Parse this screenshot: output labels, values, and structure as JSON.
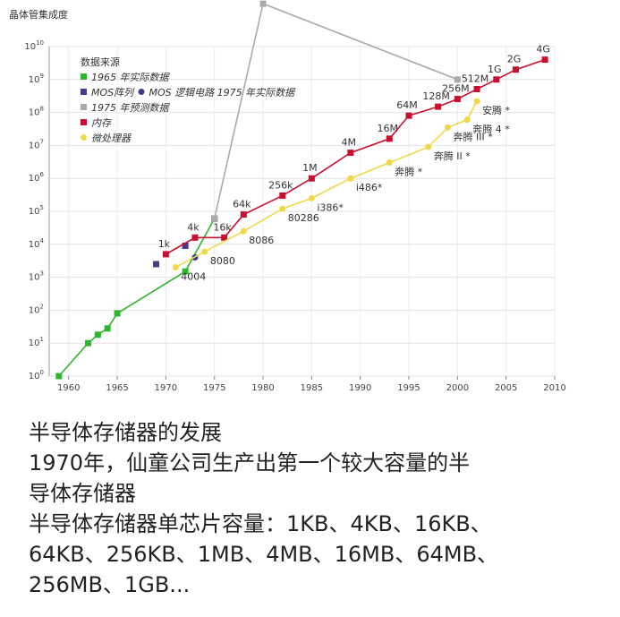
{
  "chart_data": {
    "type": "line",
    "ylabel": "晶体管集成度",
    "y_scale": "log",
    "xlim": [
      1958,
      2010
    ],
    "ylim_exponent": [
      0,
      10
    ],
    "x_ticks": [
      "1960",
      "1965",
      "1970",
      "1975",
      "1980",
      "1985",
      "1990",
      "1995",
      "2000",
      "2005",
      "2010"
    ],
    "y_tick_base": "10",
    "y_tick_exponents": [
      "0",
      "1",
      "2",
      "3",
      "4",
      "5",
      "6",
      "7",
      "8",
      "9",
      "10"
    ],
    "legend_title": "数据来源",
    "legend_position": "top-left",
    "grid": true,
    "series": [
      {
        "name": "1965 年实际数据",
        "color": "#2db52d",
        "marker": "square",
        "line": true,
        "points": [
          [
            1959,
            1
          ],
          [
            1962,
            10
          ],
          [
            1963,
            18
          ],
          [
            1964,
            28
          ],
          [
            1965,
            80
          ],
          [
            1972,
            1500
          ],
          [
            1975,
            60000
          ]
        ]
      },
      {
        "name": "MOS阵列",
        "color": "#4a3a8c",
        "marker": "square",
        "line": false,
        "points": [
          [
            1969,
            2500
          ],
          [
            1972,
            9000
          ],
          [
            1975,
            60000
          ]
        ]
      },
      {
        "name": "MOS 逻辑电路 1975 年实际数据",
        "color": "#3b3b8f",
        "marker": "circle",
        "line": false,
        "points": [
          [
            1973,
            4000
          ]
        ]
      },
      {
        "name": "1975 年预测数据",
        "color": "#aaaaaa",
        "marker": "square",
        "line": true,
        "points": [
          [
            1975,
            60000
          ],
          [
            1980,
            200000000000
          ],
          [
            2000,
            1000000000
          ]
        ]
      },
      {
        "name": "内存",
        "color": "#c8102e",
        "marker": "square",
        "line": true,
        "points": [
          [
            1970,
            5000
          ],
          [
            1973,
            16000
          ],
          [
            1976,
            16000
          ],
          [
            1978,
            80000
          ],
          [
            1982,
            300000
          ],
          [
            1985,
            1000000
          ],
          [
            1989,
            6000000
          ],
          [
            1993,
            16000000
          ],
          [
            1995,
            80000000
          ],
          [
            1998,
            150000000
          ],
          [
            2000,
            256000000
          ],
          [
            2002,
            512000000
          ],
          [
            2004,
            1000000000
          ],
          [
            2006,
            2000000000
          ],
          [
            2009,
            4000000000
          ]
        ]
      },
      {
        "name": "微处理器",
        "color": "#f0d84a",
        "marker": "circle",
        "line": true,
        "points": [
          [
            1971,
            2000
          ],
          [
            1974,
            6000
          ],
          [
            1978,
            25000
          ],
          [
            1982,
            120000
          ],
          [
            1985,
            250000
          ],
          [
            1989,
            1000000
          ],
          [
            1993,
            3000000
          ],
          [
            1997,
            9000000
          ],
          [
            1999,
            35000000
          ],
          [
            2001,
            60000000
          ],
          [
            2002,
            220000000
          ]
        ]
      }
    ],
    "annotations": [
      {
        "text": "1k",
        "x": 1970,
        "y": 5000
      },
      {
        "text": "4k",
        "x": 1973,
        "y": 16000
      },
      {
        "text": "16k",
        "x": 1976,
        "y": 16000
      },
      {
        "text": "64k",
        "x": 1978,
        "y": 80000
      },
      {
        "text": "256k",
        "x": 1982,
        "y": 300000
      },
      {
        "text": "1M",
        "x": 1985,
        "y": 1000000
      },
      {
        "text": "4M",
        "x": 1989,
        "y": 6000000
      },
      {
        "text": "16M",
        "x": 1993,
        "y": 16000000
      },
      {
        "text": "64M",
        "x": 1995,
        "y": 80000000
      },
      {
        "text": "128M",
        "x": 1998,
        "y": 150000000
      },
      {
        "text": "256M",
        "x": 2000,
        "y": 256000000
      },
      {
        "text": "512M",
        "x": 2002,
        "y": 512000000
      },
      {
        "text": "1G",
        "x": 2004,
        "y": 1000000000
      },
      {
        "text": "2G",
        "x": 2006,
        "y": 2000000000
      },
      {
        "text": "4G",
        "x": 2009,
        "y": 4000000000
      },
      {
        "text": "4004",
        "x": 1971,
        "y": 2000
      },
      {
        "text": "8080",
        "x": 1974,
        "y": 6000
      },
      {
        "text": "8086",
        "x": 1978,
        "y": 25000
      },
      {
        "text": "80286",
        "x": 1982,
        "y": 120000
      },
      {
        "text": "i386*",
        "x": 1985,
        "y": 250000
      },
      {
        "text": "i486*",
        "x": 1989,
        "y": 1000000
      },
      {
        "text": "奔腾 *",
        "x": 1993,
        "y": 3000000
      },
      {
        "text": "奔腾 II *",
        "x": 1997,
        "y": 9000000
      },
      {
        "text": "奔腾 III *",
        "x": 1999,
        "y": 35000000
      },
      {
        "text": "奔腾 4 *",
        "x": 2001,
        "y": 60000000
      },
      {
        "text": "安腾 *",
        "x": 2002,
        "y": 220000000
      }
    ]
  },
  "text": {
    "line1": "半导体存储器的发展",
    "line2": "1970年，仙童公司生产出第一个较大容量的半",
    "line3": "导体存储器",
    "line4": "半导体存储器单芯片容量：1KB、4KB、16KB、",
    "line5": "64KB、256KB、1MB、4MB、16MB、64MB、",
    "line6": "256MB、1GB..."
  }
}
